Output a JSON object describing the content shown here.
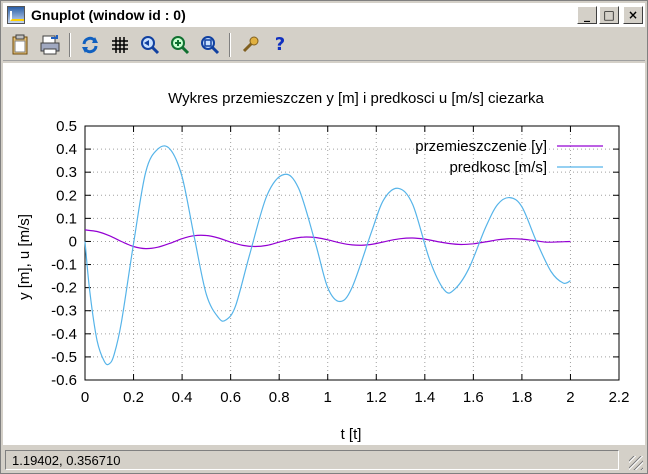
{
  "window": {
    "title": "Gnuplot (window id : 0)",
    "buttons": {
      "minimize": "_",
      "maximize": "□",
      "close": "×"
    }
  },
  "toolbar": {
    "icons": [
      "clipboard-icon",
      "print-icon",
      "replot-icon",
      "grid-icon",
      "zoom-back-icon",
      "zoom-in-icon",
      "zoom-forward-icon",
      "options-icon",
      "help-icon"
    ],
    "help_label": "?"
  },
  "status": {
    "coordinates": "1.19402,  0.356710"
  },
  "colors": {
    "displacement": "#9400d3",
    "velocity": "#56b4e9",
    "grid": "#a0a0a0"
  },
  "chart_data": {
    "type": "line",
    "title": "Wykres przemieszczen y [m] i predkosci u [m/s] ciezarka",
    "xlabel": "t [t]",
    "ylabel": "y [m], u [m/s]",
    "xlim": [
      0,
      2.2
    ],
    "ylim": [
      -0.6,
      0.5
    ],
    "xticks": [
      "0",
      "0.2",
      "0.4",
      "0.6",
      "0.8",
      "1",
      "1.2",
      "1.4",
      "1.6",
      "1.8",
      "2",
      "2.2"
    ],
    "yticks": [
      "0.5",
      "0.4",
      "0.3",
      "0.2",
      "0.1",
      "0",
      "-0.1",
      "-0.2",
      "-0.3",
      "-0.4",
      "-0.5",
      "-0.6"
    ],
    "grid": true,
    "legend_position": "top-right",
    "series": [
      {
        "name": "przemieszczenie [y]",
        "x": [
          0,
          0.05,
          0.1,
          0.15,
          0.2,
          0.25,
          0.3,
          0.35,
          0.4,
          0.45,
          0.5,
          0.55,
          0.6,
          0.65,
          0.7,
          0.75,
          0.8,
          0.85,
          0.9,
          0.95,
          1.0,
          1.05,
          1.1,
          1.15,
          1.2,
          1.25,
          1.3,
          1.35,
          1.4,
          1.45,
          1.5,
          1.55,
          1.6,
          1.65,
          1.7,
          1.75,
          1.8,
          1.85,
          1.9,
          1.95,
          2.0
        ],
        "y": [
          0.05,
          0.043,
          0.025,
          0.0,
          -0.022,
          -0.031,
          -0.025,
          -0.008,
          0.012,
          0.025,
          0.026,
          0.015,
          -0.003,
          -0.017,
          -0.022,
          -0.017,
          -0.003,
          0.011,
          0.019,
          0.017,
          0.007,
          -0.006,
          -0.015,
          -0.016,
          -0.009,
          0.003,
          0.012,
          0.015,
          0.01,
          0.0,
          -0.009,
          -0.013,
          -0.01,
          -0.002,
          0.007,
          0.012,
          0.01,
          0.004,
          -0.003,
          -0.002,
          0.0
        ]
      },
      {
        "name": "predkosc [m/s]",
        "x": [
          0,
          0.02,
          0.05,
          0.08,
          0.1,
          0.12,
          0.15,
          0.2,
          0.25,
          0.3,
          0.35,
          0.4,
          0.45,
          0.5,
          0.55,
          0.58,
          0.62,
          0.68,
          0.75,
          0.82,
          0.88,
          0.95,
          1.0,
          1.05,
          1.1,
          1.18,
          1.23,
          1.29,
          1.35,
          1.42,
          1.48,
          1.52,
          1.58,
          1.65,
          1.7,
          1.75,
          1.8,
          1.86,
          1.92,
          1.97,
          2.0
        ],
        "y": [
          0.0,
          -0.22,
          -0.43,
          -0.52,
          -0.53,
          -0.49,
          -0.35,
          -0.01,
          0.3,
          0.4,
          0.4,
          0.28,
          0.02,
          -0.23,
          -0.33,
          -0.34,
          -0.28,
          -0.05,
          0.2,
          0.29,
          0.23,
          -0.01,
          -0.2,
          -0.26,
          -0.2,
          0.04,
          0.18,
          0.23,
          0.16,
          -0.08,
          -0.21,
          -0.21,
          -0.12,
          0.06,
          0.16,
          0.19,
          0.15,
          0.0,
          -0.13,
          -0.18,
          -0.17
        ]
      }
    ]
  }
}
